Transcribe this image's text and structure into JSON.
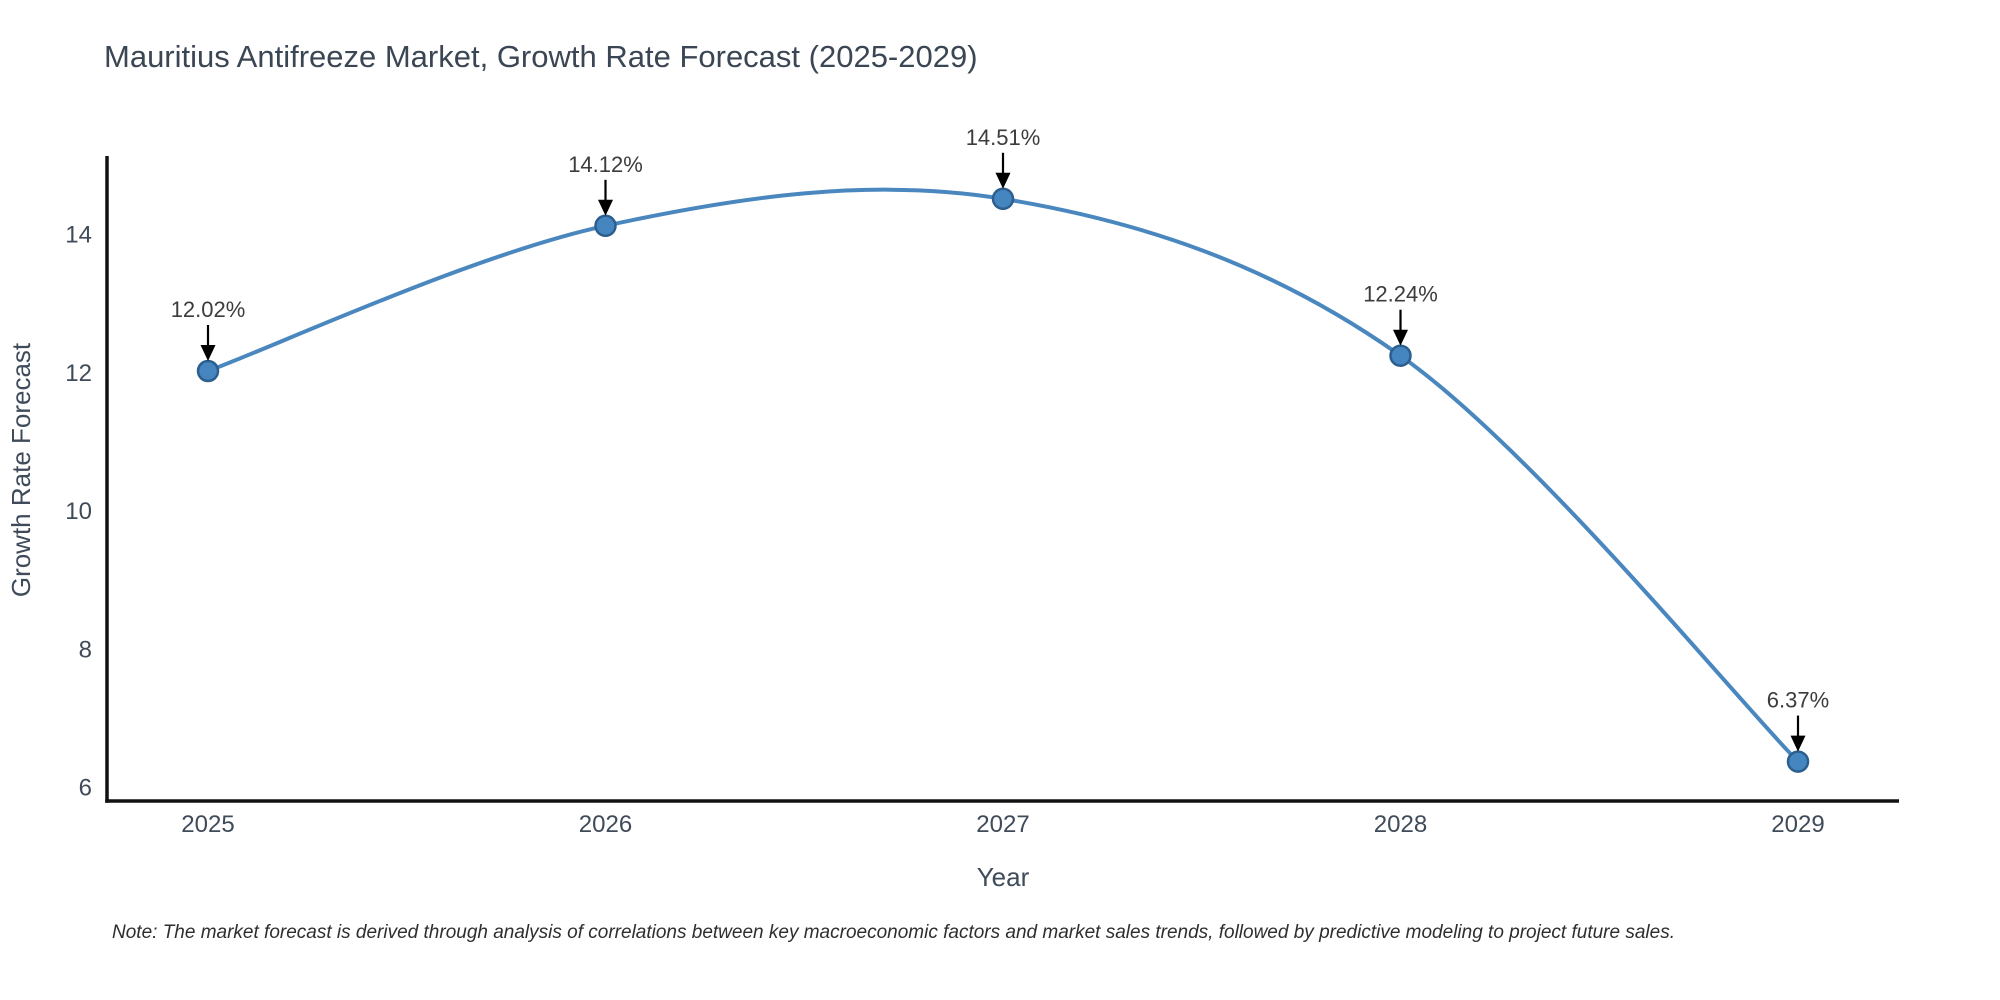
{
  "chart_data": {
    "type": "line",
    "title": "Mauritius Antifreeze Market, Growth Rate Forecast (2025-2029)",
    "xlabel": "Year",
    "ylabel": "Growth Rate Forecast",
    "categories": [
      "2025",
      "2026",
      "2027",
      "2028",
      "2029"
    ],
    "series": [
      {
        "name": "Growth Rate Forecast",
        "values": [
          12.02,
          14.12,
          14.51,
          12.24,
          6.37
        ]
      }
    ],
    "point_labels": [
      "12.02%",
      "14.12%",
      "14.51%",
      "12.24%",
      "6.37%"
    ],
    "yticks": [
      6,
      8,
      10,
      12,
      14
    ],
    "ylim": [
      5.8,
      15.1
    ],
    "grid": false,
    "legend": "none",
    "smooth": true,
    "marker": "circle",
    "colors": {
      "line": "#4a87bf",
      "marker_fill": "#4585c0",
      "marker_edge": "#2c5f8e",
      "annotation_arrow": "#000000",
      "axis_spine": "#111111",
      "title_text": "#3b4654",
      "tick_text": "#404b59",
      "annotation_text": "#3c3c3c",
      "note_text": "#2e2e2e"
    }
  },
  "note": {
    "text": "Note: The market forecast is derived through analysis of correlations between key macroeconomic factors and market sales trends, followed by predictive modeling to project future sales."
  }
}
